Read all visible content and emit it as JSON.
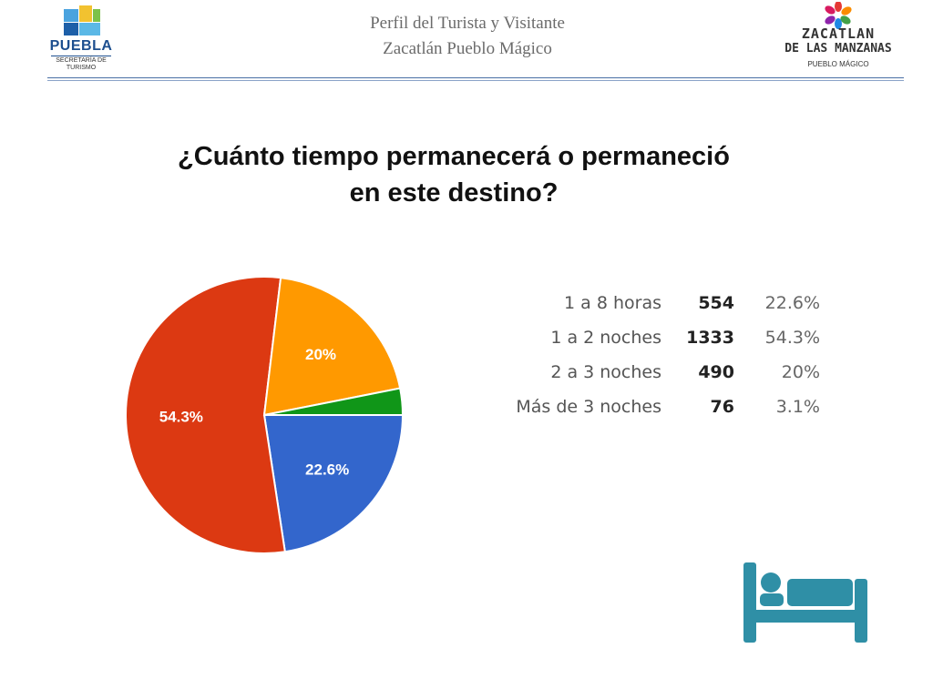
{
  "header": {
    "line1": "Perfil del Turista y Visitante",
    "line2": "Zacatlán Pueblo Mágico"
  },
  "logo_left": {
    "brand": "PUEBLA",
    "subtitle_line1": "SECRETARÍA DE",
    "subtitle_line2": "TURISMO"
  },
  "logo_right": {
    "line1": "ZACATLAN",
    "line2": "DE LAS MANZANAS",
    "line3": "PUEBLO MÁGICO"
  },
  "title": {
    "line1": "¿Cuánto tiempo permanecerá o permaneció",
    "line2": "en este destino?"
  },
  "icons": {
    "bed": "bed-icon"
  },
  "chart_data": {
    "type": "pie",
    "title": "",
    "slices": [
      {
        "label": "1 a 8 horas",
        "count": 554,
        "percent": 22.6,
        "pct_label": "22.6%",
        "color": "#3366cc"
      },
      {
        "label": "1 a 2 noches",
        "count": 1333,
        "percent": 54.3,
        "pct_label": "54.3%",
        "color": "#dc3912"
      },
      {
        "label": "2 a 3 noches",
        "count": 490,
        "percent": 20,
        "pct_label": "20%",
        "color": "#ff9900"
      },
      {
        "label": "Más de 3 noches",
        "count": 76,
        "percent": 3.1,
        "pct_label": "3.1%",
        "color": "#109618"
      }
    ]
  },
  "colors": {
    "bed_icon": "#2f8fa6",
    "header_rule": "#4a6fa5"
  }
}
